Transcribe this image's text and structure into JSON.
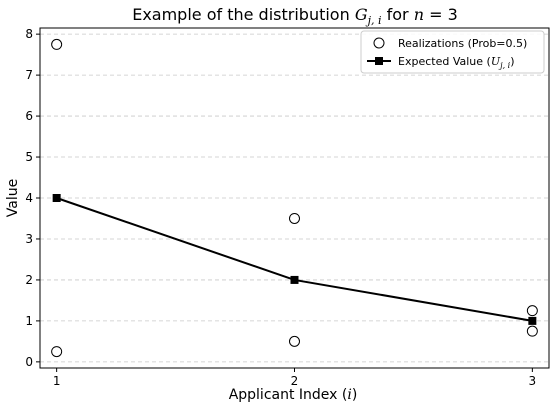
{
  "chart_data": {
    "type": "scatter",
    "title": {
      "prefix": "Example of the distribution ",
      "g": "G",
      "g_sub": "j, i",
      "mid": " for ",
      "n": "n",
      "eq": " = 3"
    },
    "xlabel": {
      "prefix": "Applicant Index (",
      "var": "i",
      "suffix": ")"
    },
    "ylabel": "Value",
    "x_ticks": [
      "1",
      "2",
      "3"
    ],
    "y_ticks": [
      "0",
      "1",
      "2",
      "3",
      "4",
      "5",
      "6",
      "7",
      "8"
    ],
    "xlim": [
      0.93,
      3.07
    ],
    "ylim": [
      -0.15,
      8.15
    ],
    "grid": "horizontal dashed",
    "legend_position": "top-right",
    "series": [
      {
        "name": "Realizations (Prob=0.5)",
        "marker": "hollow-circle",
        "points": [
          {
            "x": 1,
            "y": 7.75
          },
          {
            "x": 1,
            "y": 0.25
          },
          {
            "x": 2,
            "y": 3.5
          },
          {
            "x": 2,
            "y": 0.5
          },
          {
            "x": 3,
            "y": 1.25
          },
          {
            "x": 3,
            "y": 0.75
          }
        ]
      },
      {
        "name_prefix": "Expected Value (",
        "name_var": "U",
        "name_sub": "j, i",
        "name_suffix": ")",
        "marker": "filled-square",
        "line": "solid",
        "points": [
          {
            "x": 1,
            "y": 4.0
          },
          {
            "x": 2,
            "y": 2.0
          },
          {
            "x": 3,
            "y": 1.0
          }
        ]
      }
    ]
  }
}
